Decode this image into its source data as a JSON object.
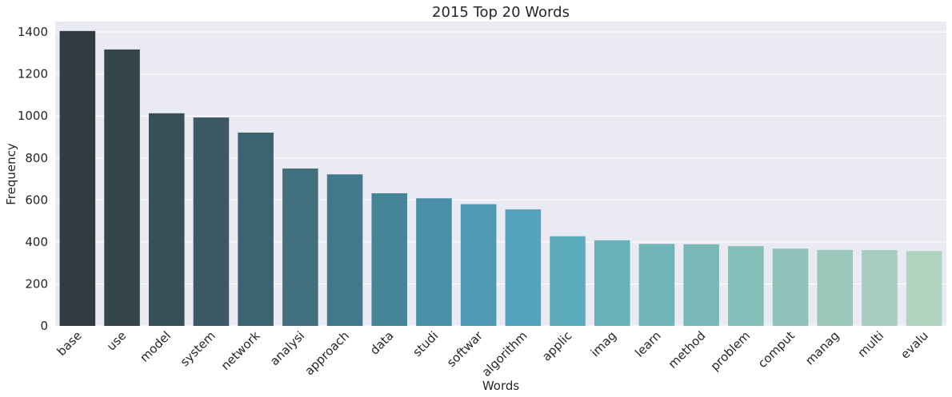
{
  "chart_data": {
    "type": "bar",
    "title": "2015 Top 20 Words",
    "xlabel": "Words",
    "ylabel": "Frequency",
    "ylim": [
      0,
      1450
    ],
    "yticks": [
      0,
      200,
      400,
      600,
      800,
      1000,
      1200,
      1400
    ],
    "grid": true,
    "categories": [
      "base",
      "use",
      "model",
      "system",
      "network",
      "analysi",
      "approach",
      "data",
      "studi",
      "softwar",
      "algorithm",
      "applic",
      "imag",
      "learn",
      "method",
      "problem",
      "comput",
      "manag",
      "multi",
      "evalu"
    ],
    "values": [
      1405,
      1317,
      1013,
      993,
      921,
      750,
      722,
      632,
      608,
      580,
      555,
      427,
      408,
      391,
      389,
      380,
      368,
      362,
      361,
      357
    ],
    "colors": [
      "#323b3f",
      "#35454b",
      "#384f58",
      "#3b5865",
      "#3d6372",
      "#41707f",
      "#43798c",
      "#468598",
      "#4a8fa6",
      "#4f99b4",
      "#55a3bd",
      "#5dacbd",
      "#66b1ba",
      "#70b4b8",
      "#7ab8b7",
      "#85bdb8",
      "#90c2b9",
      "#9bc7bb",
      "#a5ccbe",
      "#b0d4c0"
    ]
  }
}
